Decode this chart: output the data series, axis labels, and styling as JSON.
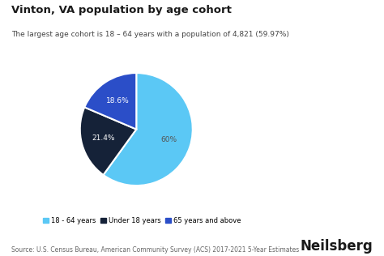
{
  "title": "Vinton, VA population by age cohort",
  "subtitle": "The largest age cohort is 18 – 64 years with a population of 4,821 (59.97%)",
  "slices": [
    59.97,
    21.43,
    18.6
  ],
  "labels": [
    "18 - 64 years",
    "Under 18 years",
    "65 years and above"
  ],
  "colors": [
    "#5BC8F5",
    "#152238",
    "#2B4EC8"
  ],
  "pct_labels": [
    "60%",
    "21.4%",
    "18.6%"
  ],
  "legend_colors": [
    "#5BC8F5",
    "#152238",
    "#2B4EC8"
  ],
  "source": "Source: U.S. Census Bureau, American Community Survey (ACS) 2017-2021 5-Year Estimates",
  "branding": "Neilsberg",
  "background_color": "#ffffff",
  "title_fontsize": 9.5,
  "subtitle_fontsize": 6.5,
  "legend_fontsize": 6,
  "source_fontsize": 5.5,
  "brand_fontsize": 12
}
